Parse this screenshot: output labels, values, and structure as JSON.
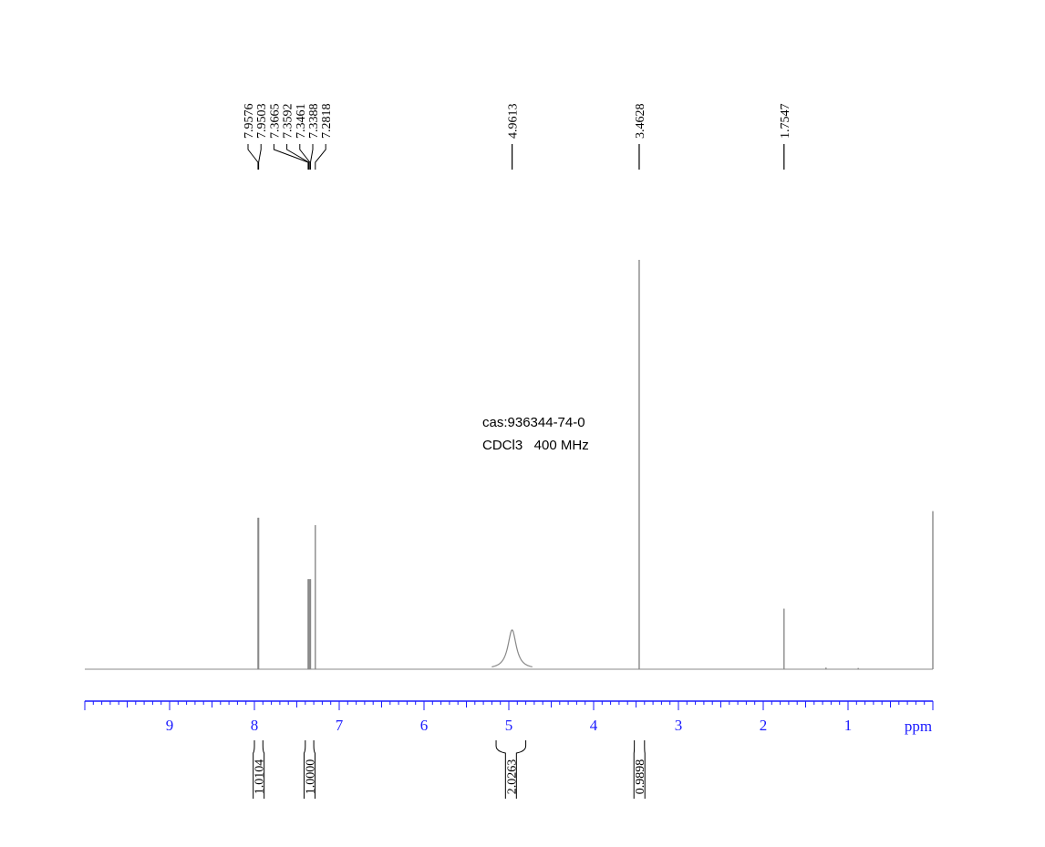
{
  "chart_data": {
    "type": "line",
    "xlabel": "ppm",
    "x_reversed": true,
    "xlim": [
      10.0,
      0.0
    ],
    "x_ticks": [
      9,
      8,
      7,
      6,
      5,
      4,
      3,
      2,
      1
    ],
    "annotations": [
      "cas:936344-74-0",
      "CDCl3   400 MHz"
    ],
    "peak_labels": [
      "7.9576",
      "7.9503",
      "7.3665",
      "7.3592",
      "7.3461",
      "7.3388",
      "7.2818",
      "4.9613",
      "3.4628",
      "1.7547"
    ],
    "peaks": [
      {
        "ppm": 7.9576,
        "height": 0.37,
        "width": 0.004
      },
      {
        "ppm": 7.9503,
        "height": 0.37,
        "width": 0.004
      },
      {
        "ppm": 7.3665,
        "height": 0.22,
        "width": 0.004
      },
      {
        "ppm": 7.3592,
        "height": 0.22,
        "width": 0.004
      },
      {
        "ppm": 7.3461,
        "height": 0.22,
        "width": 0.004
      },
      {
        "ppm": 7.3388,
        "height": 0.22,
        "width": 0.004
      },
      {
        "ppm": 7.2818,
        "height": 0.352,
        "width": 0.003
      },
      {
        "ppm": 4.9613,
        "height": 0.096,
        "width": 0.06
      },
      {
        "ppm": 3.4628,
        "height": 1.0,
        "width": 0.003
      },
      {
        "ppm": 1.7547,
        "height": 0.148,
        "width": 0.004
      },
      {
        "ppm": 1.26,
        "height": 0.004,
        "width": 0.02
      },
      {
        "ppm": 0.88,
        "height": 0.003,
        "width": 0.02
      },
      {
        "ppm": 0.0,
        "height": 0.386,
        "width": 0.003
      }
    ],
    "integrals": [
      {
        "label": "1.0104",
        "from": 8.0,
        "to": 7.9
      },
      {
        "label": "1.0000",
        "from": 7.4,
        "to": 7.3
      },
      {
        "label": "2.0263",
        "from": 5.15,
        "to": 4.8
      },
      {
        "label": "0.9898",
        "from": 3.52,
        "to": 3.4
      }
    ],
    "colors": {
      "axis": "#1a1aff",
      "spectrum": "#888888",
      "text": "#000000"
    }
  }
}
